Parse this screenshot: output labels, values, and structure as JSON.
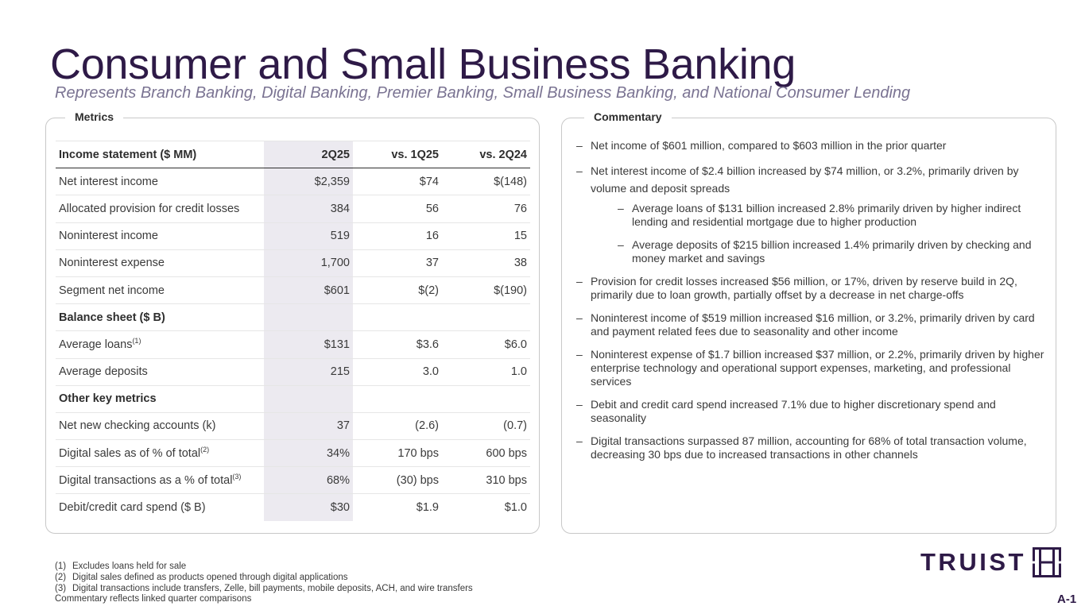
{
  "title": "Consumer and Small Business Banking",
  "subtitle": "Represents Branch Banking, Digital Banking, Premier Banking, Small Business Banking, and National Consumer Lending",
  "metrics": {
    "label": "Metrics",
    "header": [
      "Income statement ($ MM)",
      "2Q25",
      "vs. 1Q25",
      "vs. 2Q24"
    ],
    "rows": [
      {
        "label": "Net interest income",
        "c1": "$2,359",
        "c2": "$74",
        "c3": "$(148)"
      },
      {
        "label": "Allocated provision for credit losses",
        "c1": "384",
        "c2": "56",
        "c3": "76"
      },
      {
        "label": "Noninterest income",
        "c1": "519",
        "c2": "16",
        "c3": "15"
      },
      {
        "label": "Noninterest expense",
        "c1": "1,700",
        "c2": "37",
        "c3": "38"
      },
      {
        "label": "Segment net income",
        "c1": "$601",
        "c2": "$(2)",
        "c3": "$(190)"
      }
    ],
    "balance_section": "Balance sheet ($ B)",
    "balance_rows": [
      {
        "label": "Average loans",
        "sup": "(1)",
        "c1": "$131",
        "c2": "$3.6",
        "c3": "$6.0"
      },
      {
        "label": "Average deposits",
        "c1": "215",
        "c2": "3.0",
        "c3": "1.0"
      }
    ],
    "other_section": "Other key metrics",
    "other_rows": [
      {
        "label": "Net new checking accounts (k)",
        "c1": "37",
        "c2": "(2.6)",
        "c3": "(0.7)"
      },
      {
        "label": "Digital sales as of % of total",
        "sup": "(2)",
        "c1": "34%",
        "c2": "170 bps",
        "c3": "600 bps"
      },
      {
        "label": "Digital transactions as a % of total",
        "sup": "(3)",
        "c1": "68%",
        "c2": "(30) bps",
        "c3": "310 bps"
      },
      {
        "label": "Debit/credit card spend ($ B)",
        "c1": "$30",
        "c2": "$1.9",
        "c3": "$1.0"
      }
    ]
  },
  "commentary": {
    "label": "Commentary",
    "dash": "–",
    "items": [
      "Net income of $601 million, compared to $603 million in the prior quarter",
      "Net interest income of $2.4 billion increased by $74 million, or 3.2%, primarily driven by volume and deposit spreads",
      "Average loans of $131 billion increased 2.8% primarily driven by higher indirect lending and residential mortgage due to higher production",
      "Average deposits of $215 billion increased 1.4% primarily driven by checking and money market and savings",
      "Provision for credit losses increased $56 million, or 17%, driven by reserve build in 2Q, primarily due to loan growth, partially offset by a decrease in net charge-offs",
      "Noninterest income of $519 million increased $16 million, or 3.2%, primarily driven by card and payment related fees due to seasonality and other income",
      "Noninterest expense of $1.7 billion increased $37 million, or 2.2%, primarily driven by higher enterprise technology and operational support expenses, marketing, and professional services",
      "Debit and credit card spend increased 7.1% due to higher discretionary spend and seasonality",
      "Digital transactions surpassed 87 million, accounting for 68% of total transaction volume, decreasing 30 bps due to increased transactions in other channels"
    ]
  },
  "footnotes": [
    {
      "num": "(1)",
      "text": "Excludes loans held for sale"
    },
    {
      "num": "(2)",
      "text": "Digital sales defined as products opened through digital applications"
    },
    {
      "num": "(3)",
      "text": "Digital transactions include transfers, Zelle, bill payments, mobile deposits, ACH, and wire transfers"
    }
  ],
  "footnote_extra": "Commentary reflects linked quarter comparisons",
  "logo": {
    "word": "TRUIST",
    "icon": "truist-logo-icon"
  },
  "page_number": "A-1",
  "colors": {
    "brand": "#2e1a47",
    "subtitle": "#7a7392",
    "highlight_column": "#eceaf0"
  }
}
